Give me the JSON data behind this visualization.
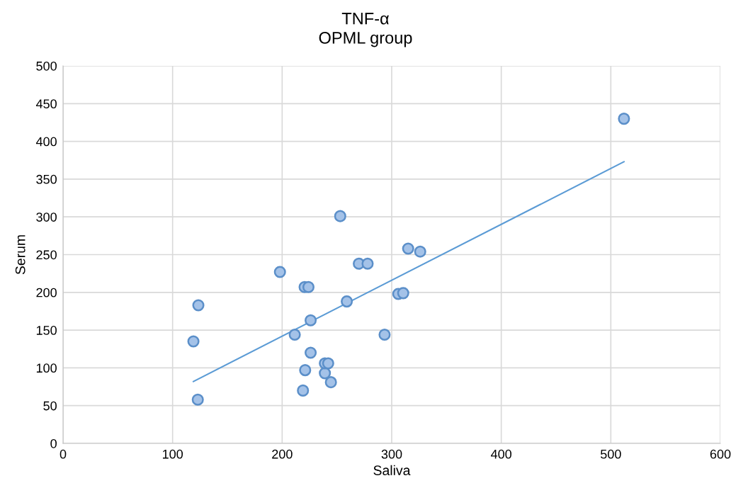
{
  "chart_data": {
    "type": "scatter",
    "title": "TNF-α\nOPML group",
    "xlabel": "Saliva",
    "ylabel": "Serum",
    "xlim": [
      0,
      600
    ],
    "xticks": [
      0,
      100,
      200,
      300,
      400,
      500,
      600
    ],
    "ylim": [
      0,
      500
    ],
    "yticks": [
      0,
      50,
      100,
      150,
      200,
      250,
      300,
      350,
      400,
      450,
      500
    ],
    "grid": true,
    "legend": false,
    "marker": "circle",
    "series": [
      {
        "color": "#a4c2e8",
        "x": [
          119,
          123.5,
          123,
          198,
          220.5,
          224,
          211.5,
          226,
          226,
          221,
          219,
          239,
          239,
          242,
          244.5,
          253,
          259,
          270,
          278,
          293.5,
          306,
          310.5,
          315,
          326,
          512
        ],
        "values": [
          135,
          183,
          58,
          227,
          207,
          207,
          144,
          163,
          120,
          97,
          70,
          93,
          106,
          106,
          81,
          301,
          188,
          238,
          238,
          144,
          198,
          199,
          258,
          254,
          430
        ]
      },
      {
        "type": "line",
        "color": "#5b9bd5",
        "marker": "none",
        "x": [
          119,
          512
        ],
        "values": [
          82,
          373
        ]
      }
    ]
  }
}
